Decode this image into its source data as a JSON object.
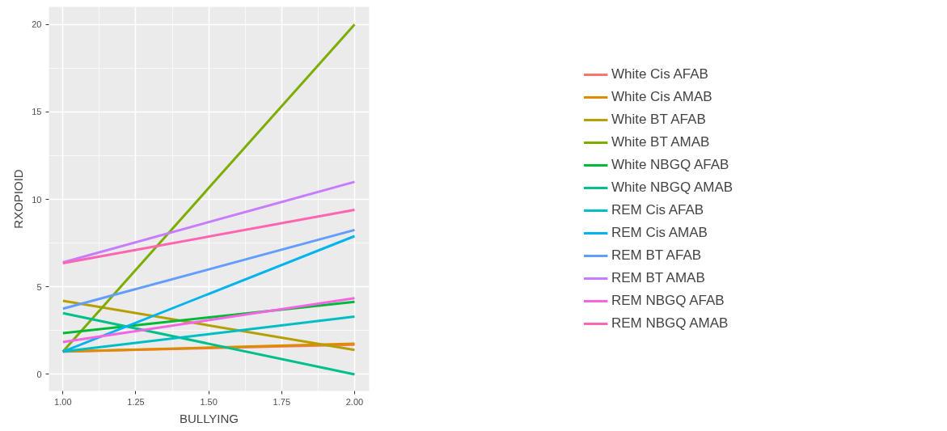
{
  "chart_data": {
    "type": "line",
    "xlabel": "BULLYING",
    "ylabel": "RXOPIOID",
    "x": [
      1.0,
      2.0
    ],
    "series": [
      {
        "name": "White Cis AFAB",
        "color": "#f8766d",
        "values": [
          1.3,
          1.7
        ]
      },
      {
        "name": "White Cis AMAB",
        "color": "#de8c00",
        "values": [
          1.3,
          1.75
        ]
      },
      {
        "name": "White BT AFAB",
        "color": "#b79f00",
        "values": [
          4.2,
          1.4
        ]
      },
      {
        "name": "White BT AMAB",
        "color": "#7cae00",
        "values": [
          1.3,
          20.0
        ]
      },
      {
        "name": "White NBGQ AFAB",
        "color": "#00ba38",
        "values": [
          2.35,
          4.15
        ]
      },
      {
        "name": "White NBGQ AMAB",
        "color": "#00c08b",
        "values": [
          3.5,
          0.0
        ]
      },
      {
        "name": "REM Cis AFAB",
        "color": "#00bfc4",
        "values": [
          1.3,
          3.3
        ]
      },
      {
        "name": "REM Cis AMAB",
        "color": "#00b4f0",
        "values": [
          1.3,
          7.9
        ]
      },
      {
        "name": "REM BT AFAB",
        "color": "#619cff",
        "values": [
          3.75,
          8.25
        ]
      },
      {
        "name": "REM BT AMAB",
        "color": "#c77cff",
        "values": [
          6.4,
          11.0
        ]
      },
      {
        "name": "REM NBGQ AFAB",
        "color": "#f564e3",
        "values": [
          1.85,
          4.35
        ]
      },
      {
        "name": "REM NBGQ AMAB",
        "color": "#ff64b0",
        "values": [
          6.35,
          9.4
        ]
      }
    ],
    "xlim": [
      0.952,
      2.05
    ],
    "ylim": [
      -0.95,
      21
    ],
    "xticks": [
      {
        "value": 1.0,
        "label": "1.00"
      },
      {
        "value": 1.25,
        "label": "1.25"
      },
      {
        "value": 1.5,
        "label": "1.50"
      },
      {
        "value": 1.75,
        "label": "1.75"
      },
      {
        "value": 2.0,
        "label": "2.00"
      }
    ],
    "yticks": [
      0,
      5,
      10,
      15,
      20
    ],
    "grid": true,
    "legend": "right",
    "marker": "none",
    "line_style": "solid"
  }
}
